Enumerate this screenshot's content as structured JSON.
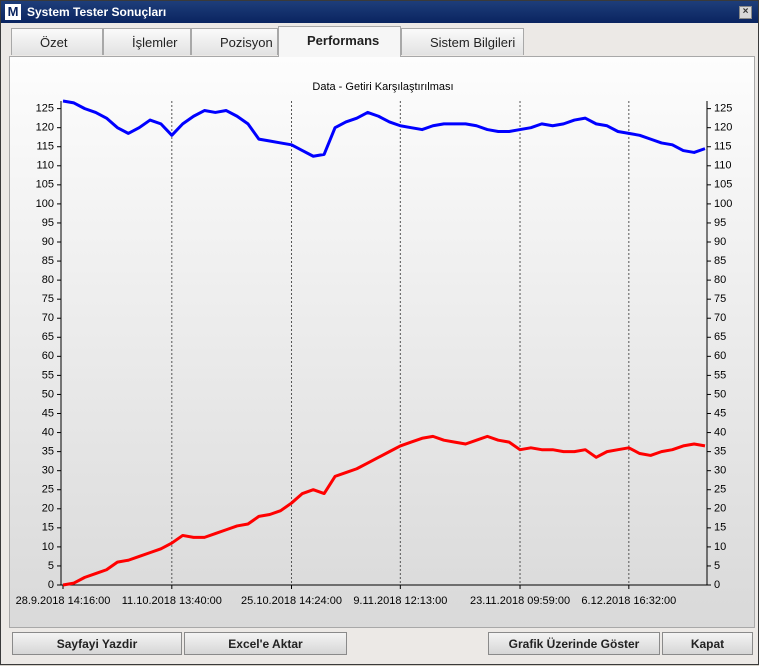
{
  "window": {
    "title": "System Tester Sonuçları",
    "icon": "M"
  },
  "tabs": [
    {
      "label": "Özet"
    },
    {
      "label": "İşlemler"
    },
    {
      "label": "Pozisyon"
    },
    {
      "label": "Performans",
      "selected": true
    },
    {
      "label": "Sistem Bilgileri"
    }
  ],
  "chart_data": {
    "type": "line",
    "title": "Data - Getiri Karşılaştırılması",
    "categories": [
      "28.9.2018 14:16:00",
      null,
      null,
      null,
      null,
      null,
      null,
      null,
      null,
      null,
      "11.10.2018 13:40:00",
      null,
      null,
      null,
      null,
      null,
      null,
      null,
      null,
      null,
      null,
      "25.10.2018 14:24:00",
      null,
      null,
      null,
      null,
      null,
      null,
      null,
      null,
      null,
      "9.11.2018 12:13:00",
      null,
      null,
      null,
      null,
      null,
      null,
      null,
      null,
      null,
      null,
      "23.11.2018 09:59:00",
      null,
      null,
      null,
      null,
      null,
      null,
      null,
      null,
      null,
      "6.12.2018 16:32:00",
      null,
      null,
      null,
      null,
      null,
      null,
      null
    ],
    "series": [
      {
        "color": "#0000ff",
        "values": [
          127,
          126.5,
          125,
          124,
          122.5,
          120,
          118.5,
          120,
          122,
          121,
          118,
          121,
          123,
          124.5,
          124,
          124.5,
          123,
          121,
          117,
          116.5,
          116,
          115.5,
          114,
          112.5,
          113,
          120,
          121.5,
          122.5,
          124,
          123,
          121.5,
          120.5,
          120,
          119.5,
          120.5,
          121,
          121,
          121,
          120.5,
          119.5,
          119,
          119,
          119.5,
          120,
          121,
          120.5,
          121,
          122,
          122.5,
          121,
          120.5,
          119,
          118.5,
          118,
          117,
          116,
          115.5,
          114,
          113.5,
          114.5
        ]
      },
      {
        "color": "#ff0000",
        "values": [
          0,
          0.5,
          2,
          3,
          4,
          6,
          6.5,
          7.5,
          8.5,
          9.5,
          11,
          13,
          12.5,
          12.5,
          13.5,
          14.5,
          15.5,
          16,
          18,
          18.5,
          19.5,
          21.5,
          24,
          25,
          24,
          28.5,
          29.5,
          30.5,
          32,
          33.5,
          35,
          36.5,
          37.5,
          38.5,
          39,
          38,
          37.5,
          37,
          38,
          39,
          38,
          37.5,
          35.5,
          36,
          35.5,
          35.5,
          35,
          35,
          35.5,
          33.5,
          35,
          35.5,
          36,
          34.5,
          34,
          35,
          35.5,
          36.5,
          37,
          36.5
        ]
      }
    ],
    "ylim": [
      0,
      127
    ],
    "yticks": [
      0,
      5,
      10,
      15,
      20,
      25,
      30,
      35,
      40,
      45,
      50,
      55,
      60,
      65,
      70,
      75,
      80,
      85,
      90,
      95,
      100,
      105,
      110,
      115,
      120,
      125
    ],
    "right_axis": true,
    "xgrid": true
  },
  "buttons": [
    "Sayfayi Yazdir",
    "Excel'e Aktar",
    "Grafik Üzerinde Göster",
    "Kapat"
  ]
}
